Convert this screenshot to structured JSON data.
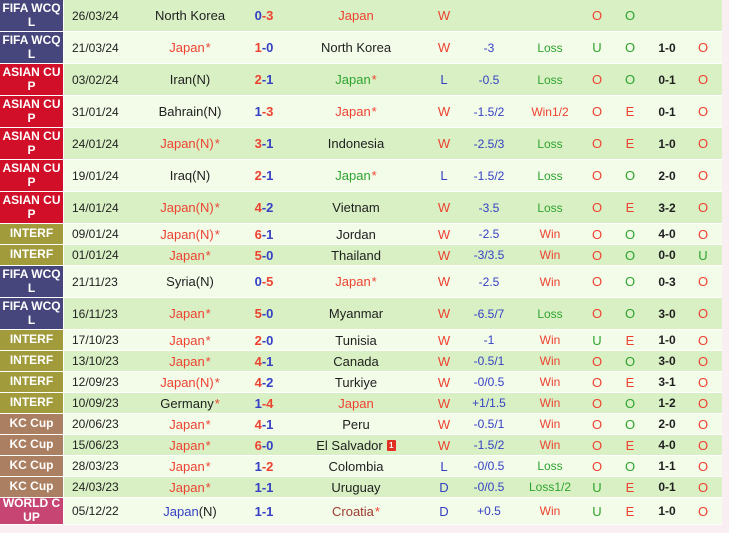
{
  "competitions": {
    "FIFA WCQL": "#46467d",
    "ASIAN CUP": "#d20f28",
    "INTERF": "#a19b3c",
    "KC Cup": "#ab7f61",
    "WORLD CUP": "#c74572"
  },
  "colors": {
    "winner_score": "#ee4231",
    "loser_score": "#3540c4",
    "win_mark": "#ee4231",
    "loss_mark": "#2fa42f",
    "row_green": "#d8f0c4",
    "row_cream": "#f3fbe9"
  },
  "rows": [
    {
      "comp": "FIFA WCQL",
      "date": "26/03/24",
      "home": {
        "name": "North Korea",
        "color": "black",
        "star": false
      },
      "score": {
        "h": "0",
        "a": "3",
        "hc": "blue",
        "ac": "red"
      },
      "away": {
        "name": "Japan",
        "color": "red",
        "star": false
      },
      "wl": {
        "t": "W",
        "c": "red"
      },
      "hcap": "",
      "hres": {
        "t": "",
        "c": "green"
      },
      "ou1": {
        "t": "O",
        "c": "red"
      },
      "oe": {
        "t": "O",
        "c": "green"
      },
      "sc2": "",
      "ou2": {
        "t": "",
        "c": "red"
      }
    },
    {
      "comp": "FIFA WCQL",
      "date": "21/03/24",
      "home": {
        "name": "Japan",
        "color": "red",
        "star": true
      },
      "score": {
        "h": "1",
        "a": "0",
        "hc": "red",
        "ac": "blue"
      },
      "away": {
        "name": "North Korea",
        "color": "black",
        "star": false
      },
      "wl": {
        "t": "W",
        "c": "red"
      },
      "hcap": "-3",
      "hres": {
        "t": "Loss",
        "c": "green"
      },
      "ou1": {
        "t": "U",
        "c": "green"
      },
      "oe": {
        "t": "O",
        "c": "green"
      },
      "sc2": "1-0",
      "ou2": {
        "t": "O",
        "c": "red"
      }
    },
    {
      "comp": "ASIAN CUP",
      "date": "03/02/24",
      "home": {
        "name": "Iran(N)",
        "color": "black",
        "star": false
      },
      "score": {
        "h": "2",
        "a": "1",
        "hc": "red",
        "ac": "blue"
      },
      "away": {
        "name": "Japan",
        "color": "green",
        "star": true
      },
      "wl": {
        "t": "L",
        "c": "blue"
      },
      "hcap": "-0.5",
      "hres": {
        "t": "Loss",
        "c": "green"
      },
      "ou1": {
        "t": "O",
        "c": "red"
      },
      "oe": {
        "t": "O",
        "c": "green"
      },
      "sc2": "0-1",
      "ou2": {
        "t": "O",
        "c": "red"
      }
    },
    {
      "comp": "ASIAN CUP",
      "date": "31/01/24",
      "home": {
        "name": "Bahrain(N)",
        "color": "black",
        "star": false
      },
      "score": {
        "h": "1",
        "a": "3",
        "hc": "blue",
        "ac": "red"
      },
      "away": {
        "name": "Japan",
        "color": "red",
        "star": true
      },
      "wl": {
        "t": "W",
        "c": "red"
      },
      "hcap": "-1.5/2",
      "hres": {
        "t": "Win1/2",
        "c": "red"
      },
      "ou1": {
        "t": "O",
        "c": "red"
      },
      "oe": {
        "t": "E",
        "c": "red"
      },
      "sc2": "0-1",
      "ou2": {
        "t": "O",
        "c": "red"
      }
    },
    {
      "comp": "ASIAN CUP",
      "date": "24/01/24",
      "home": {
        "name": "Japan(N)",
        "color": "red",
        "star": true
      },
      "score": {
        "h": "3",
        "a": "1",
        "hc": "red",
        "ac": "blue"
      },
      "away": {
        "name": "Indonesia",
        "color": "black",
        "star": false
      },
      "wl": {
        "t": "W",
        "c": "red"
      },
      "hcap": "-2.5/3",
      "hres": {
        "t": "Loss",
        "c": "green"
      },
      "ou1": {
        "t": "O",
        "c": "red"
      },
      "oe": {
        "t": "E",
        "c": "red"
      },
      "sc2": "1-0",
      "ou2": {
        "t": "O",
        "c": "red"
      }
    },
    {
      "comp": "ASIAN CUP",
      "date": "19/01/24",
      "home": {
        "name": "Iraq(N)",
        "color": "black",
        "star": false
      },
      "score": {
        "h": "2",
        "a": "1",
        "hc": "red",
        "ac": "blue"
      },
      "away": {
        "name": "Japan",
        "color": "green",
        "star": true
      },
      "wl": {
        "t": "L",
        "c": "blue"
      },
      "hcap": "-1.5/2",
      "hres": {
        "t": "Loss",
        "c": "green"
      },
      "ou1": {
        "t": "O",
        "c": "red"
      },
      "oe": {
        "t": "O",
        "c": "green"
      },
      "sc2": "2-0",
      "ou2": {
        "t": "O",
        "c": "red"
      }
    },
    {
      "comp": "ASIAN CUP",
      "date": "14/01/24",
      "home": {
        "name": "Japan(N)",
        "color": "red",
        "star": true
      },
      "score": {
        "h": "4",
        "a": "2",
        "hc": "red",
        "ac": "blue"
      },
      "away": {
        "name": "Vietnam",
        "color": "black",
        "star": false
      },
      "wl": {
        "t": "W",
        "c": "red"
      },
      "hcap": "-3.5",
      "hres": {
        "t": "Loss",
        "c": "green"
      },
      "ou1": {
        "t": "O",
        "c": "red"
      },
      "oe": {
        "t": "E",
        "c": "red"
      },
      "sc2": "3-2",
      "ou2": {
        "t": "O",
        "c": "red"
      }
    },
    {
      "comp": "INTERF",
      "date": "09/01/24",
      "home": {
        "name": "Japan(N)",
        "color": "red",
        "star": true
      },
      "score": {
        "h": "6",
        "a": "1",
        "hc": "red",
        "ac": "blue"
      },
      "away": {
        "name": "Jordan",
        "color": "black",
        "star": false
      },
      "wl": {
        "t": "W",
        "c": "red"
      },
      "hcap": "-2.5",
      "hres": {
        "t": "Win",
        "c": "red"
      },
      "ou1": {
        "t": "O",
        "c": "red"
      },
      "oe": {
        "t": "O",
        "c": "green"
      },
      "sc2": "4-0",
      "ou2": {
        "t": "O",
        "c": "red"
      }
    },
    {
      "comp": "INTERF",
      "date": "01/01/24",
      "home": {
        "name": "Japan",
        "color": "red",
        "star": true
      },
      "score": {
        "h": "5",
        "a": "0",
        "hc": "red",
        "ac": "blue"
      },
      "away": {
        "name": "Thailand",
        "color": "black",
        "star": false
      },
      "wl": {
        "t": "W",
        "c": "red"
      },
      "hcap": "-3/3.5",
      "hres": {
        "t": "Win",
        "c": "red"
      },
      "ou1": {
        "t": "O",
        "c": "red"
      },
      "oe": {
        "t": "O",
        "c": "green"
      },
      "sc2": "0-0",
      "ou2": {
        "t": "U",
        "c": "green"
      }
    },
    {
      "comp": "FIFA WCQL",
      "date": "21/11/23",
      "home": {
        "name": "Syria(N)",
        "color": "black",
        "star": false
      },
      "score": {
        "h": "0",
        "a": "5",
        "hc": "blue",
        "ac": "red"
      },
      "away": {
        "name": "Japan",
        "color": "red",
        "star": true
      },
      "wl": {
        "t": "W",
        "c": "red"
      },
      "hcap": "-2.5",
      "hres": {
        "t": "Win",
        "c": "red"
      },
      "ou1": {
        "t": "O",
        "c": "red"
      },
      "oe": {
        "t": "O",
        "c": "green"
      },
      "sc2": "0-3",
      "ou2": {
        "t": "O",
        "c": "red"
      }
    },
    {
      "comp": "FIFA WCQL",
      "date": "16/11/23",
      "home": {
        "name": "Japan",
        "color": "red",
        "star": true
      },
      "score": {
        "h": "5",
        "a": "0",
        "hc": "red",
        "ac": "blue"
      },
      "away": {
        "name": "Myanmar",
        "color": "black",
        "star": false
      },
      "wl": {
        "t": "W",
        "c": "red"
      },
      "hcap": "-6.5/7",
      "hres": {
        "t": "Loss",
        "c": "green"
      },
      "ou1": {
        "t": "O",
        "c": "red"
      },
      "oe": {
        "t": "O",
        "c": "green"
      },
      "sc2": "3-0",
      "ou2": {
        "t": "O",
        "c": "red"
      }
    },
    {
      "comp": "INTERF",
      "date": "17/10/23",
      "home": {
        "name": "Japan",
        "color": "red",
        "star": true
      },
      "score": {
        "h": "2",
        "a": "0",
        "hc": "red",
        "ac": "blue"
      },
      "away": {
        "name": "Tunisia",
        "color": "black",
        "star": false
      },
      "wl": {
        "t": "W",
        "c": "red"
      },
      "hcap": "-1",
      "hres": {
        "t": "Win",
        "c": "red"
      },
      "ou1": {
        "t": "U",
        "c": "green"
      },
      "oe": {
        "t": "E",
        "c": "red"
      },
      "sc2": "1-0",
      "ou2": {
        "t": "O",
        "c": "red"
      }
    },
    {
      "comp": "INTERF",
      "date": "13/10/23",
      "home": {
        "name": "Japan",
        "color": "red",
        "star": true
      },
      "score": {
        "h": "4",
        "a": "1",
        "hc": "red",
        "ac": "blue"
      },
      "away": {
        "name": "Canada",
        "color": "black",
        "star": false
      },
      "wl": {
        "t": "W",
        "c": "red"
      },
      "hcap": "-0.5/1",
      "hres": {
        "t": "Win",
        "c": "red"
      },
      "ou1": {
        "t": "O",
        "c": "red"
      },
      "oe": {
        "t": "O",
        "c": "green"
      },
      "sc2": "3-0",
      "ou2": {
        "t": "O",
        "c": "red"
      }
    },
    {
      "comp": "INTERF",
      "date": "12/09/23",
      "home": {
        "name": "Japan(N)",
        "color": "red",
        "star": true
      },
      "score": {
        "h": "4",
        "a": "2",
        "hc": "red",
        "ac": "blue"
      },
      "away": {
        "name": "Turkiye",
        "color": "black",
        "star": false
      },
      "wl": {
        "t": "W",
        "c": "red"
      },
      "hcap": "-0/0.5",
      "hres": {
        "t": "Win",
        "c": "red"
      },
      "ou1": {
        "t": "O",
        "c": "red"
      },
      "oe": {
        "t": "E",
        "c": "red"
      },
      "sc2": "3-1",
      "ou2": {
        "t": "O",
        "c": "red"
      }
    },
    {
      "comp": "INTERF",
      "date": "10/09/23",
      "home": {
        "name": "Germany",
        "color": "black",
        "star": true
      },
      "score": {
        "h": "1",
        "a": "4",
        "hc": "blue",
        "ac": "red"
      },
      "away": {
        "name": "Japan",
        "color": "red",
        "star": false
      },
      "wl": {
        "t": "W",
        "c": "red"
      },
      "hcap": "+1/1.5",
      "hres": {
        "t": "Win",
        "c": "red"
      },
      "ou1": {
        "t": "O",
        "c": "red"
      },
      "oe": {
        "t": "O",
        "c": "green"
      },
      "sc2": "1-2",
      "ou2": {
        "t": "O",
        "c": "red"
      }
    },
    {
      "comp": "KC Cup",
      "date": "20/06/23",
      "home": {
        "name": "Japan",
        "color": "red",
        "star": true
      },
      "score": {
        "h": "4",
        "a": "1",
        "hc": "red",
        "ac": "blue"
      },
      "away": {
        "name": "Peru",
        "color": "black",
        "star": false
      },
      "wl": {
        "t": "W",
        "c": "red"
      },
      "hcap": "-0.5/1",
      "hres": {
        "t": "Win",
        "c": "red"
      },
      "ou1": {
        "t": "O",
        "c": "red"
      },
      "oe": {
        "t": "O",
        "c": "green"
      },
      "sc2": "2-0",
      "ou2": {
        "t": "O",
        "c": "red"
      }
    },
    {
      "comp": "KC Cup",
      "date": "15/06/23",
      "home": {
        "name": "Japan",
        "color": "red",
        "star": true
      },
      "score": {
        "h": "6",
        "a": "0",
        "hc": "red",
        "ac": "blue"
      },
      "away": {
        "name": "El Salvador",
        "color": "black",
        "star": false,
        "redcard": "1"
      },
      "wl": {
        "t": "W",
        "c": "red"
      },
      "hcap": "-1.5/2",
      "hres": {
        "t": "Win",
        "c": "red"
      },
      "ou1": {
        "t": "O",
        "c": "red"
      },
      "oe": {
        "t": "E",
        "c": "red"
      },
      "sc2": "4-0",
      "ou2": {
        "t": "O",
        "c": "red"
      }
    },
    {
      "comp": "KC Cup",
      "date": "28/03/23",
      "home": {
        "name": "Japan",
        "color": "red",
        "star": true
      },
      "score": {
        "h": "1",
        "a": "2",
        "hc": "blue",
        "ac": "red"
      },
      "away": {
        "name": "Colombia",
        "color": "black",
        "star": false
      },
      "wl": {
        "t": "L",
        "c": "blue"
      },
      "hcap": "-0/0.5",
      "hres": {
        "t": "Loss",
        "c": "green"
      },
      "ou1": {
        "t": "O",
        "c": "red"
      },
      "oe": {
        "t": "O",
        "c": "green"
      },
      "sc2": "1-1",
      "ou2": {
        "t": "O",
        "c": "red"
      }
    },
    {
      "comp": "KC Cup",
      "date": "24/03/23",
      "home": {
        "name": "Japan",
        "color": "red",
        "star": true
      },
      "score": {
        "h": "1",
        "a": "1",
        "hc": "blue",
        "ac": "blue"
      },
      "away": {
        "name": "Uruguay",
        "color": "black",
        "star": false
      },
      "wl": {
        "t": "D",
        "c": "blue"
      },
      "hcap": "-0/0.5",
      "hres": {
        "t": "Loss1/2",
        "c": "green"
      },
      "ou1": {
        "t": "U",
        "c": "green"
      },
      "oe": {
        "t": "E",
        "c": "red"
      },
      "sc2": "0-1",
      "ou2": {
        "t": "O",
        "c": "red"
      }
    },
    {
      "comp": "WORLD CUP",
      "date": "05/12/22",
      "home": {
        "name": "Japan",
        "color": "blue",
        "star": false,
        "suffix": "(N)"
      },
      "score": {
        "h": "1",
        "a": "1",
        "hc": "blue",
        "ac": "blue"
      },
      "away": {
        "name": "Croatia",
        "color": "darkred",
        "star": true
      },
      "wl": {
        "t": "D",
        "c": "blue"
      },
      "hcap": "+0.5",
      "hres": {
        "t": "Win",
        "c": "red"
      },
      "ou1": {
        "t": "U",
        "c": "green"
      },
      "oe": {
        "t": "E",
        "c": "red"
      },
      "sc2": "1-0",
      "ou2": {
        "t": "O",
        "c": "red"
      }
    }
  ]
}
